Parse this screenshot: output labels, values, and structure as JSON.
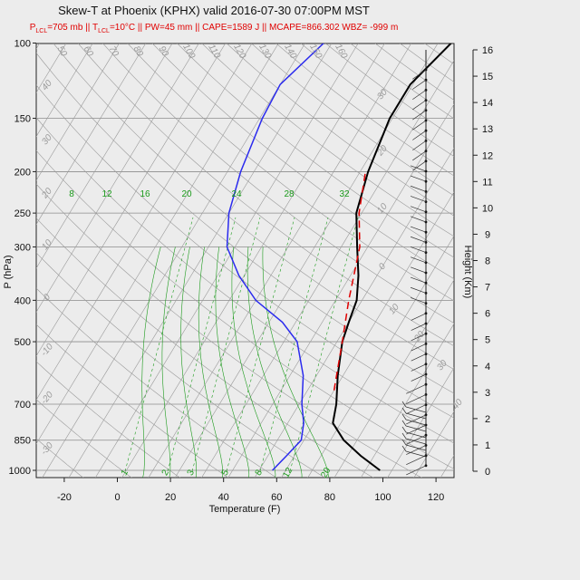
{
  "title": "Skew-T at Phoenix (KPHX) valid 2016-07-30 07:00PM MST",
  "subtitle": {
    "p_lcl_a": "P",
    "p_lcl_sub": "LCL",
    "p_lcl_b": "=705 mb || T",
    "t_lcl_sub": "LCL",
    "t_lcl_b": "=10°C || PW=45 mm || CAPE=1589 J || MCAPE=866.302 WBZ= -999 m"
  },
  "chart_data": {
    "type": "line",
    "xlabel": "Temperature (F)",
    "ylabel": "P (hPa)",
    "y2label": "Height (Km)",
    "x_ticks": [
      "-20",
      "0",
      "20",
      "40",
      "60",
      "80",
      "100",
      "120"
    ],
    "y_ticks": [
      "100",
      "150",
      "200",
      "250",
      "300",
      "400",
      "500",
      "700",
      "850",
      "1000"
    ],
    "height_ticks": [
      "0",
      "1",
      "2",
      "3",
      "4",
      "5",
      "6",
      "7",
      "8",
      "9",
      "10",
      "11",
      "12",
      "13",
      "14",
      "15",
      "16"
    ],
    "mixing_ratio_labels": [
      "1",
      "2",
      "3",
      "5",
      "8",
      "12"
    ],
    "dry_adiabat_labels": [
      "50",
      "60",
      "70",
      "80",
      "90",
      "100",
      "110",
      "120",
      "130",
      "140",
      "150",
      "160"
    ],
    "isotherm_labels_left": [
      "40",
      "30",
      "20",
      "10",
      "0",
      "-10",
      "-20",
      "-30"
    ],
    "isotherm_labels_right": [
      "30",
      "20",
      "10",
      "0",
      "10",
      "20",
      "30",
      "40"
    ],
    "moist_adiabat_labels": [
      "8",
      "12",
      "16",
      "20",
      "24",
      "28",
      "32"
    ],
    "series": [
      {
        "name": "Temperature",
        "color": "#000000",
        "points": [
          [
            105.5,
            1000
          ],
          [
            95,
            925
          ],
          [
            85,
            850
          ],
          [
            77,
            775
          ],
          [
            74,
            700
          ],
          [
            68,
            600
          ],
          [
            62,
            500
          ],
          [
            60,
            450
          ],
          [
            58,
            400
          ],
          [
            53,
            350
          ],
          [
            46,
            300
          ],
          [
            38,
            250
          ],
          [
            33,
            200
          ],
          [
            29,
            150
          ],
          [
            29,
            125
          ],
          [
            35,
            100
          ]
        ]
      },
      {
        "name": "Dewpoint",
        "color": "#2a2aee",
        "points": [
          [
            65,
            1000
          ],
          [
            67,
            925
          ],
          [
            69,
            850
          ],
          [
            66,
            775
          ],
          [
            61,
            700
          ],
          [
            55,
            600
          ],
          [
            45,
            500
          ],
          [
            35,
            450
          ],
          [
            20,
            400
          ],
          [
            8,
            350
          ],
          [
            -3,
            300
          ],
          [
            -10,
            250
          ],
          [
            -15,
            200
          ],
          [
            -19,
            150
          ],
          [
            -20,
            125
          ],
          [
            -13,
            100
          ]
        ]
      },
      {
        "name": "Parcel",
        "color": "#e00000",
        "points": [
          [
            70,
            650
          ],
          [
            62,
            500
          ],
          [
            55,
            400
          ],
          [
            47,
            300
          ],
          [
            39,
            250
          ],
          [
            32,
            200
          ]
        ]
      }
    ],
    "colors": {
      "temperature": "#000000",
      "dewpoint": "#2a2aee",
      "parcel": "#e00000",
      "isobar": "#8c8c8c",
      "isotherm": "#9a9a9a",
      "dry_adiabat": "#9a9a9a",
      "mixing_ratio": "#1a9a1a",
      "moist_adiabat": "#1a9a1a"
    }
  }
}
